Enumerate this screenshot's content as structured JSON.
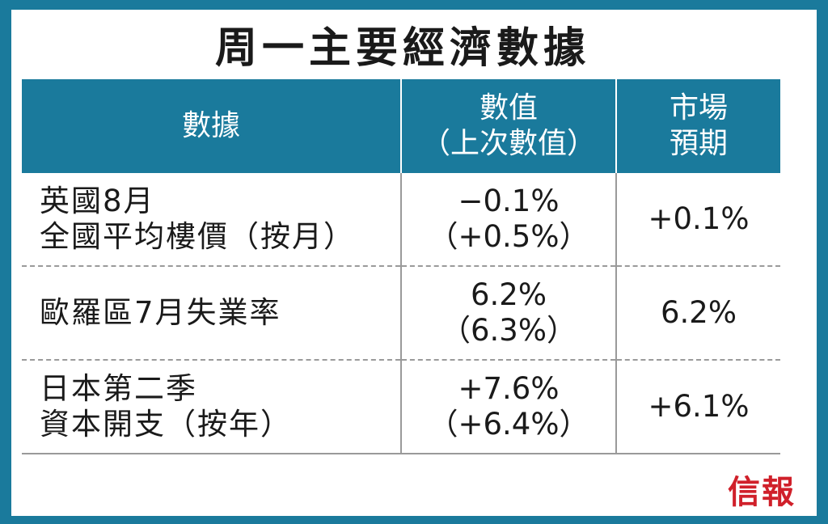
{
  "title": "周一主要經濟數據",
  "headers": {
    "col1": "數據",
    "col2_line1": "數值",
    "col2_line2": "（上次數值）",
    "col3_line1": "市場",
    "col3_line2": "預期"
  },
  "rows": [
    {
      "label_line1": "英國8月",
      "label_line2": "全國平均樓價（按月）",
      "value": "−0.1%",
      "previous": "（+0.5%）",
      "expected": "+0.1%"
    },
    {
      "label_line1": "歐羅區7月失業率",
      "label_line2": "",
      "value": "6.2%",
      "previous": "（6.3%）",
      "expected": "6.2%"
    },
    {
      "label_line1": "日本第二季",
      "label_line2": "資本開支（按年）",
      "value": "+7.6%",
      "previous": "（+6.4%）",
      "expected": "+6.1%"
    }
  ],
  "logo_text": "信報",
  "colors": {
    "frame": "#1a7a9c",
    "header_bg": "#1a7a9c",
    "logo": "#d0202a"
  }
}
